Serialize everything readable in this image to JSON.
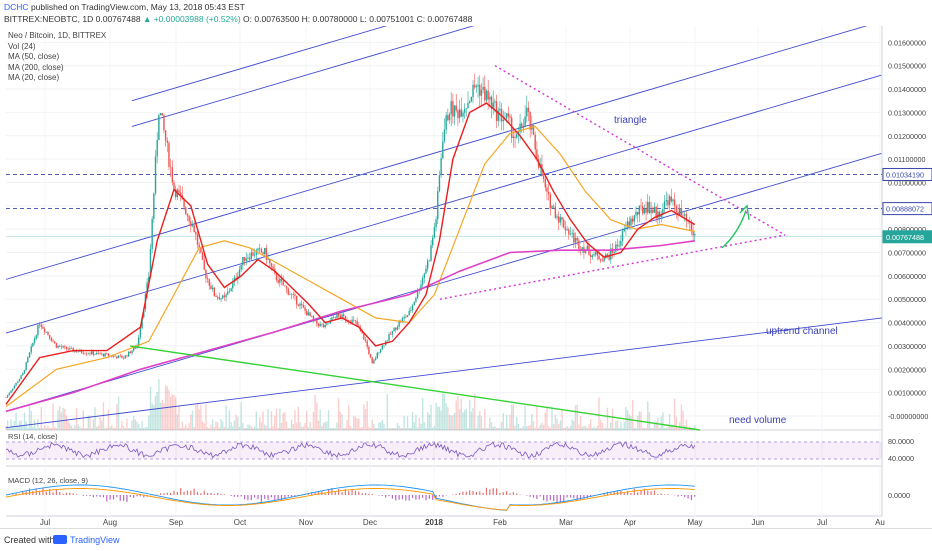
{
  "header": {
    "user": "DCHC",
    "published": "published on TradingView.com, May 13, 2018 05:43 EST",
    "symbol": "BITTREX:NEOBTC, 1D",
    "last": "0.00767488",
    "change": "▲ +0.00003988 (+0.52%)",
    "open": "O: 0.00763500",
    "high": "H: 0.00780000",
    "low": "L: 0.00751001",
    "close": "C: 0.00767488"
  },
  "legend": [
    "Neo / Bitcoin, 1D, BITTREX",
    "Vol (24)",
    "MA (50, close)",
    "MA (200, close)",
    "MA (20, close)"
  ],
  "annotations": {
    "triangle": "triangle",
    "uptrend": "uptrend channel",
    "volume": "need volume"
  },
  "chart_data": {
    "type": "candlestick",
    "y_ticks": [
      "0.01600000",
      "0.01500000",
      "0.01400000",
      "0.01300000",
      "0.01200000",
      "0.01100000",
      "0.01000000",
      "0.00900000",
      "0.00800000",
      "0.00700000",
      "0.00600000",
      "0.00500000",
      "0.00400000",
      "0.00300000",
      "0.00200000",
      "0.00100000",
      "-0.00000000"
    ],
    "y_range": [
      -0.0006,
      0.0167
    ],
    "price_labels": [
      {
        "text": "0.01034190",
        "value": 0.0103419,
        "color": "#3949ab"
      },
      {
        "text": "0.00888072",
        "value": 0.00888072,
        "color": "#3949ab"
      },
      {
        "text": "0.00767488",
        "value": 0.00767488,
        "color": "#26a69a"
      }
    ],
    "x_labels": [
      "Jul",
      "Aug",
      "Sep",
      "Oct",
      "Nov",
      "Dec",
      "2018",
      "Feb",
      "Mar",
      "Apr",
      "May",
      "Jun",
      "Jul",
      "Au"
    ],
    "close_path": [
      [
        0,
        0.0008
      ],
      [
        10,
        0.0018
      ],
      [
        20,
        0.004
      ],
      [
        30,
        0.003
      ],
      [
        40,
        0.0028
      ],
      [
        50,
        0.0027
      ],
      [
        60,
        0.0026
      ],
      [
        70,
        0.0025
      ],
      [
        78,
        0.003
      ],
      [
        85,
        0.006
      ],
      [
        91,
        0.0132
      ],
      [
        95,
        0.0118
      ],
      [
        100,
        0.0098
      ],
      [
        106,
        0.009
      ],
      [
        112,
        0.008
      ],
      [
        118,
        0.0062
      ],
      [
        124,
        0.0052
      ],
      [
        130,
        0.005
      ],
      [
        136,
        0.0058
      ],
      [
        142,
        0.0068
      ],
      [
        148,
        0.007
      ],
      [
        154,
        0.007
      ],
      [
        160,
        0.006
      ],
      [
        166,
        0.0055
      ],
      [
        172,
        0.005
      ],
      [
        178,
        0.0045
      ],
      [
        184,
        0.004
      ],
      [
        190,
        0.0038
      ],
      [
        196,
        0.0043
      ],
      [
        202,
        0.0042
      ],
      [
        208,
        0.004
      ],
      [
        214,
        0.0032
      ],
      [
        218,
        0.0022
      ],
      [
        222,
        0.0028
      ],
      [
        228,
        0.0034
      ],
      [
        234,
        0.004
      ],
      [
        240,
        0.0044
      ],
      [
        246,
        0.0055
      ],
      [
        252,
        0.0068
      ],
      [
        256,
        0.0085
      ],
      [
        260,
        0.012
      ],
      [
        264,
        0.0132
      ],
      [
        268,
        0.013
      ],
      [
        274,
        0.0134
      ],
      [
        280,
        0.0142
      ],
      [
        286,
        0.0137
      ],
      [
        292,
        0.013
      ],
      [
        298,
        0.0127
      ],
      [
        304,
        0.0118
      ],
      [
        310,
        0.013
      ],
      [
        316,
        0.0112
      ],
      [
        322,
        0.0094
      ],
      [
        328,
        0.0086
      ],
      [
        334,
        0.008
      ],
      [
        340,
        0.0074
      ],
      [
        346,
        0.0071
      ],
      [
        352,
        0.0068
      ],
      [
        358,
        0.0068
      ],
      [
        364,
        0.0073
      ],
      [
        370,
        0.0082
      ],
      [
        376,
        0.0087
      ],
      [
        382,
        0.009
      ],
      [
        388,
        0.0086
      ],
      [
        394,
        0.0093
      ],
      [
        400,
        0.0088
      ],
      [
        406,
        0.0082
      ],
      [
        410,
        0.00767
      ]
    ],
    "ma20_path": [
      [
        0,
        0.0005
      ],
      [
        20,
        0.0025
      ],
      [
        40,
        0.0028
      ],
      [
        60,
        0.0028
      ],
      [
        80,
        0.0038
      ],
      [
        90,
        0.0075
      ],
      [
        100,
        0.0097
      ],
      [
        110,
        0.009
      ],
      [
        120,
        0.0065
      ],
      [
        130,
        0.0055
      ],
      [
        140,
        0.006
      ],
      [
        150,
        0.0067
      ],
      [
        160,
        0.0062
      ],
      [
        170,
        0.0055
      ],
      [
        180,
        0.0048
      ],
      [
        190,
        0.004
      ],
      [
        200,
        0.0042
      ],
      [
        210,
        0.0038
      ],
      [
        220,
        0.003
      ],
      [
        230,
        0.0032
      ],
      [
        240,
        0.004
      ],
      [
        250,
        0.0052
      ],
      [
        258,
        0.0075
      ],
      [
        266,
        0.011
      ],
      [
        276,
        0.013
      ],
      [
        286,
        0.0134
      ],
      [
        296,
        0.0128
      ],
      [
        306,
        0.012
      ],
      [
        316,
        0.011
      ],
      [
        326,
        0.0096
      ],
      [
        336,
        0.0084
      ],
      [
        346,
        0.0074
      ],
      [
        356,
        0.0068
      ],
      [
        366,
        0.007
      ],
      [
        376,
        0.008
      ],
      [
        386,
        0.0085
      ],
      [
        396,
        0.0088
      ],
      [
        410,
        0.0082
      ]
    ],
    "ma50_path": [
      [
        0,
        0.0004
      ],
      [
        30,
        0.002
      ],
      [
        60,
        0.0025
      ],
      [
        85,
        0.0032
      ],
      [
        100,
        0.0052
      ],
      [
        115,
        0.0072
      ],
      [
        130,
        0.0075
      ],
      [
        145,
        0.0072
      ],
      [
        160,
        0.0066
      ],
      [
        180,
        0.0058
      ],
      [
        200,
        0.005
      ],
      [
        220,
        0.0042
      ],
      [
        240,
        0.004
      ],
      [
        255,
        0.0052
      ],
      [
        270,
        0.008
      ],
      [
        285,
        0.0108
      ],
      [
        300,
        0.0121
      ],
      [
        315,
        0.0124
      ],
      [
        330,
        0.0112
      ],
      [
        345,
        0.0096
      ],
      [
        360,
        0.0084
      ],
      [
        375,
        0.008
      ],
      [
        390,
        0.0082
      ],
      [
        410,
        0.0079
      ]
    ],
    "ma200_path": [
      [
        0,
        0.0002
      ],
      [
        40,
        0.001
      ],
      [
        80,
        0.002
      ],
      [
        120,
        0.0028
      ],
      [
        160,
        0.0036
      ],
      [
        200,
        0.0045
      ],
      [
        240,
        0.0052
      ],
      [
        270,
        0.0062
      ],
      [
        300,
        0.007
      ],
      [
        330,
        0.0071
      ],
      [
        360,
        0.0071
      ],
      [
        390,
        0.0073
      ],
      [
        410,
        0.0075
      ]
    ]
  },
  "rsi": {
    "label": "RSI (14, close)",
    "ticks": [
      "80.0000",
      "40.0000"
    ]
  },
  "macd": {
    "label": "MACD (12, 26, close, 9)",
    "tick": "0.0000"
  },
  "footer": {
    "created": "Created with",
    "brand": "TradingView"
  },
  "colors": {
    "candle_up": "#26a69a",
    "candle_down": "#ef5350",
    "ma20": "#e91e1e",
    "ma50": "#f5a623",
    "ma200": "#e040c8",
    "channel": "#3f4bd0",
    "triangle": "#d633d6",
    "volume_line": "#35d235"
  }
}
